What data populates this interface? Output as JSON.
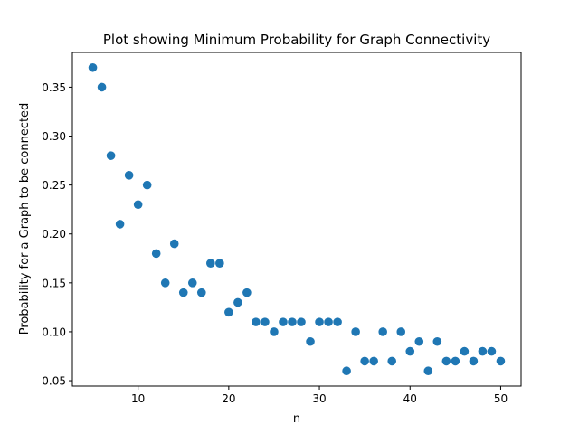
{
  "chart_data": {
    "type": "scatter",
    "title": "Plot showing Minimum Probability for Graph Connectivity",
    "xlabel": "n",
    "ylabel": "Probability for a Graph to be connected",
    "xlim": [
      2.75,
      52.25
    ],
    "ylim": [
      0.0445,
      0.3855
    ],
    "xticks": [
      10,
      20,
      30,
      40,
      50
    ],
    "xtick_labels": [
      "10",
      "20",
      "30",
      "40",
      "50"
    ],
    "yticks": [
      0.05,
      0.1,
      0.15,
      0.2,
      0.25,
      0.3,
      0.35
    ],
    "ytick_labels": [
      "0.05",
      "0.10",
      "0.15",
      "0.20",
      "0.25",
      "0.30",
      "0.35"
    ],
    "grid": false,
    "marker_color": "#1f77b4",
    "series": [
      {
        "x": [
          5,
          6,
          7,
          8,
          9,
          10,
          11,
          12,
          13,
          14,
          15,
          16,
          17,
          18,
          19,
          20,
          21,
          22,
          23,
          24,
          25,
          26,
          27,
          28,
          29,
          30,
          31,
          32,
          33,
          34,
          35,
          36,
          37,
          38,
          39,
          40,
          41,
          42,
          43,
          44,
          45,
          46,
          47,
          48,
          49,
          50
        ],
        "y": [
          0.37,
          0.35,
          0.28,
          0.21,
          0.26,
          0.23,
          0.25,
          0.18,
          0.15,
          0.19,
          0.14,
          0.15,
          0.14,
          0.17,
          0.17,
          0.12,
          0.13,
          0.14,
          0.11,
          0.11,
          0.1,
          0.11,
          0.11,
          0.11,
          0.09,
          0.11,
          0.11,
          0.11,
          0.06,
          0.1,
          0.07,
          0.07,
          0.1,
          0.07,
          0.1,
          0.08,
          0.09,
          0.06,
          0.09,
          0.07,
          0.07,
          0.08,
          0.07,
          0.08,
          0.08,
          0.07
        ]
      }
    ]
  }
}
